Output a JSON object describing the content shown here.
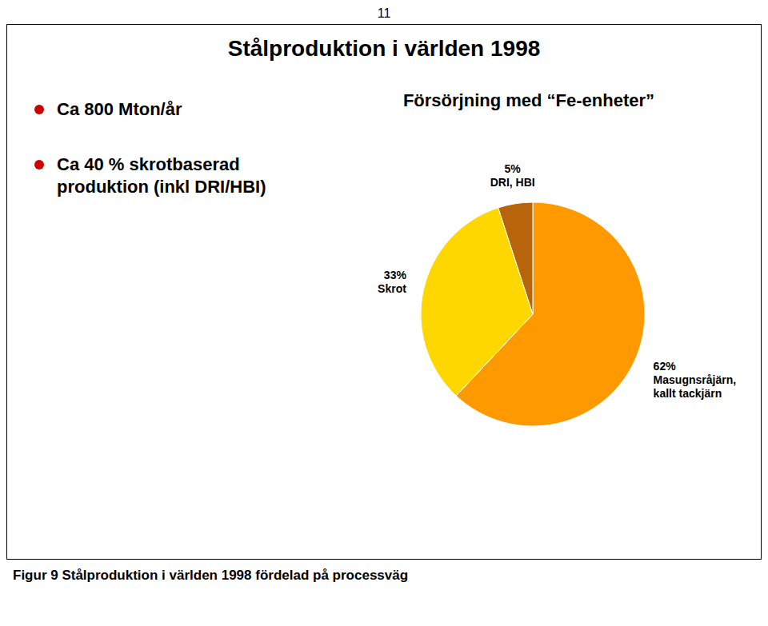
{
  "chart_data": {
    "type": "pie",
    "title": "Stålproduktion i världen 1998",
    "subtitle": "Försörjning med “Fe-enheter”",
    "annotations": [
      "11",
      "Ca 800 Mton/år",
      "Ca 40 % skrotbaserad\nproduktion (inkl DRI/HBI)",
      "Figur 9 Stålproduktion i världen 1998 fördelad på processväg"
    ],
    "categories": [
      "Masugnsråjärn,\nkallt tackjärn",
      "Skrot",
      "DRI, HBI"
    ],
    "values": [
      62,
      33,
      5
    ],
    "value_labels": [
      "62%",
      "33%",
      "5%"
    ],
    "data_labels": true,
    "colors": [
      "#FF9900",
      "#FFD700",
      "#B8640A"
    ]
  }
}
